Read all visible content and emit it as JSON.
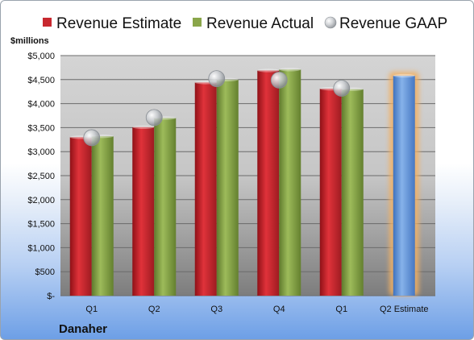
{
  "chart_data": {
    "type": "bar",
    "title": "",
    "ylabel": "$millions",
    "xlabel": "",
    "company": "Danaher",
    "categories": [
      "Q1",
      "Q2",
      "Q3",
      "Q4",
      "Q1",
      "Q2 Estimate"
    ],
    "series": [
      {
        "name": "Revenue Estimate",
        "color": "#c8282f",
        "values": [
          3300,
          3510,
          4440,
          4690,
          4310,
          null
        ]
      },
      {
        "name": "Revenue Actual",
        "color": "#8aa64a",
        "values": [
          3320,
          3700,
          4500,
          4710,
          4300,
          null
        ]
      },
      {
        "name": "Revenue GAAP",
        "color": "#b8bcc2",
        "marker": "circle",
        "values": [
          3290,
          3710,
          4520,
          4490,
          4320,
          null
        ]
      },
      {
        "name": "",
        "color": "#6d9edb",
        "highlight": "#f2b063",
        "values": [
          null,
          null,
          null,
          null,
          null,
          4580
        ]
      }
    ],
    "ylim": [
      0,
      5000
    ],
    "yticks": [
      0,
      500,
      1000,
      1500,
      2000,
      2500,
      3000,
      3500,
      4000,
      4500,
      5000
    ],
    "ytick_labels": [
      "$-",
      "$500",
      "$1,000",
      "$1,500",
      "$2,000",
      "$2,500",
      "$3,000",
      "$3,500",
      "$4,000",
      "$4,500",
      "$5,000"
    ],
    "grid": true,
    "legend_position": "top"
  }
}
